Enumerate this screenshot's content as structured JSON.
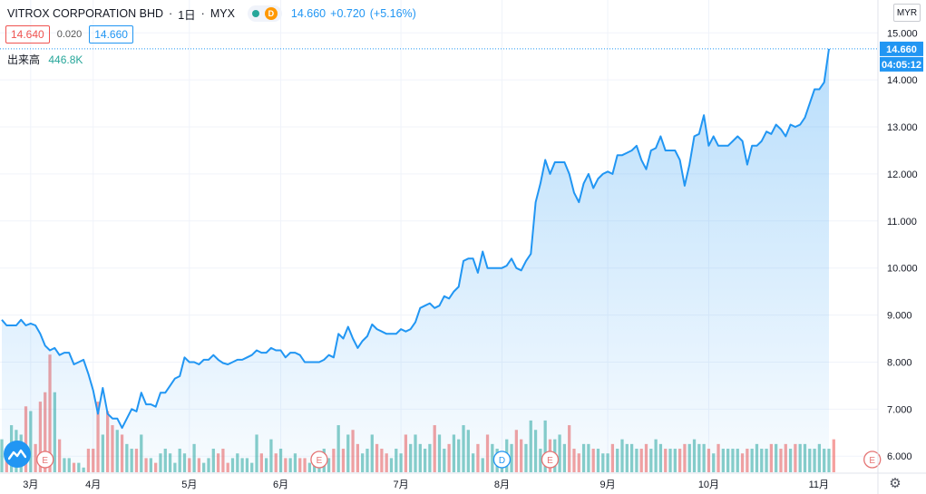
{
  "legend": {
    "symbol": "VITROX CORPORATION BHD",
    "interval": "1日",
    "exchange": "MYX",
    "d_badge": "D",
    "last": "14.660",
    "change": "+0.720",
    "change_pct": "(+5.16%)"
  },
  "bid_ask": {
    "bid": "14.640",
    "spread": "0.020",
    "ask": "14.660"
  },
  "volume": {
    "label": "出来高",
    "value": "446.8K"
  },
  "currency_button": "MYR",
  "axis_tags": {
    "price": "14.660",
    "countdown": "04:05:12"
  },
  "icons": {
    "settings": "gear-icon",
    "logo": "tradingview-logo-icon"
  },
  "colors": {
    "line": "#2196f3",
    "up_volume": "#26a69a",
    "down_volume": "#ef5350",
    "event": "#e57373",
    "dividend": "#2196f3"
  },
  "chart_data": {
    "type": "line",
    "title": "",
    "xlabel": "",
    "ylabel": "",
    "ylim": [
      5.85,
      15.15
    ],
    "y_ticks": [
      "6.000",
      "7.000",
      "8.000",
      "9.000",
      "10.000",
      "11.000",
      "12.000",
      "13.000",
      "14.000",
      "15.000"
    ],
    "x_ticks": [
      "3月",
      "4月",
      "5月",
      "6月",
      "7月",
      "8月",
      "9月",
      "10月",
      "11月"
    ],
    "grid": true,
    "price_series": {
      "name": "",
      "values": [
        8.9,
        8.78,
        8.78,
        8.78,
        8.9,
        8.78,
        8.82,
        8.78,
        8.6,
        8.35,
        8.25,
        8.3,
        8.15,
        8.2,
        8.2,
        7.95,
        8.0,
        8.05,
        7.75,
        7.4,
        6.9,
        7.45,
        6.9,
        6.8,
        6.8,
        6.6,
        6.8,
        7.0,
        6.95,
        7.35,
        7.1,
        7.1,
        7.05,
        7.35,
        7.35,
        7.5,
        7.65,
        7.7,
        8.1,
        8.0,
        8.0,
        7.95,
        8.05,
        8.05,
        8.15,
        8.05,
        7.98,
        7.95,
        8.0,
        8.05,
        8.05,
        8.1,
        8.15,
        8.25,
        8.2,
        8.2,
        8.3,
        8.25,
        8.25,
        8.1,
        8.2,
        8.2,
        8.15,
        8.0,
        8.0,
        8.0,
        8.0,
        8.05,
        8.15,
        8.1,
        8.6,
        8.5,
        8.75,
        8.5,
        8.3,
        8.45,
        8.55,
        8.8,
        8.7,
        8.65,
        8.6,
        8.6,
        8.6,
        8.7,
        8.65,
        8.7,
        8.85,
        9.15,
        9.2,
        9.25,
        9.15,
        9.2,
        9.4,
        9.35,
        9.5,
        9.6,
        10.15,
        10.2,
        10.2,
        9.9,
        10.35,
        10.0,
        10.0,
        10.0,
        10.0,
        10.05,
        10.2,
        10.0,
        9.95,
        10.15,
        10.3,
        11.4,
        11.8,
        12.3,
        12.0,
        12.25,
        12.25,
        12.25,
        12.0,
        11.6,
        11.4,
        11.8,
        12.0,
        11.7,
        11.9,
        12.0,
        12.05,
        12.0,
        12.4,
        12.4,
        12.45,
        12.5,
        12.6,
        12.3,
        12.1,
        12.5,
        12.55,
        12.8,
        12.5,
        12.5,
        12.5,
        12.3,
        11.75,
        12.2,
        12.8,
        12.85,
        13.25,
        12.6,
        12.8,
        12.6,
        12.6,
        12.6,
        12.7,
        12.8,
        12.7,
        12.2,
        12.6,
        12.6,
        12.7,
        12.9,
        12.85,
        13.05,
        12.95,
        12.8,
        13.05,
        13.0,
        13.05,
        13.2,
        13.5,
        13.8,
        13.8,
        13.95,
        14.66
      ]
    },
    "volume_series": {
      "name": "",
      "values": [
        0.7,
        0.5,
        1.0,
        0.9,
        0.8,
        1.4,
        1.3,
        0.6,
        1.5,
        1.7,
        2.5,
        1.7,
        0.7,
        0.3,
        0.3,
        0.2,
        0.2,
        0.1,
        0.5,
        0.5,
        1.5,
        0.8,
        1.3,
        1.0,
        0.9,
        0.8,
        0.6,
        0.5,
        0.5,
        0.8,
        0.3,
        0.3,
        0.2,
        0.4,
        0.5,
        0.4,
        0.2,
        0.5,
        0.4,
        0.3,
        0.6,
        0.3,
        0.2,
        0.3,
        0.5,
        0.4,
        0.5,
        0.2,
        0.3,
        0.4,
        0.3,
        0.3,
        0.2,
        0.8,
        0.4,
        0.3,
        0.7,
        0.4,
        0.5,
        0.3,
        0.3,
        0.4,
        0.3,
        0.3,
        0.2,
        0.2,
        0.4,
        0.5,
        0.3,
        0.5,
        1.0,
        0.5,
        0.8,
        0.9,
        0.6,
        0.4,
        0.5,
        0.8,
        0.6,
        0.5,
        0.4,
        0.3,
        0.5,
        0.4,
        0.8,
        0.6,
        0.8,
        0.6,
        0.5,
        0.6,
        1.0,
        0.8,
        0.5,
        0.6,
        0.8,
        0.7,
        1.0,
        0.9,
        0.4,
        0.6,
        0.3,
        0.8,
        0.6,
        0.5,
        0.4,
        0.7,
        0.6,
        0.9,
        0.7,
        0.6,
        1.1,
        0.9,
        0.5,
        1.1,
        0.7,
        0.7,
        0.8,
        0.6,
        1.0,
        0.5,
        0.4,
        0.6,
        0.6,
        0.5,
        0.5,
        0.4,
        0.4,
        0.6,
        0.5,
        0.7,
        0.6,
        0.6,
        0.5,
        0.5,
        0.6,
        0.5,
        0.7,
        0.6,
        0.5,
        0.5,
        0.5,
        0.5,
        0.6,
        0.6,
        0.7,
        0.6,
        0.6,
        0.5,
        0.4,
        0.6,
        0.5,
        0.5,
        0.5,
        0.5,
        0.4,
        0.5,
        0.5,
        0.6,
        0.5,
        0.5,
        0.6,
        0.6,
        0.5,
        0.6,
        0.5,
        0.6,
        0.6,
        0.6,
        0.5,
        0.5,
        0.6,
        0.5,
        0.5,
        0.7
      ]
    },
    "events": [
      {
        "label": "E",
        "type": "earnings",
        "x_index": 9
      },
      {
        "label": "E",
        "type": "earnings",
        "x_index": 66
      },
      {
        "label": "D",
        "type": "dividend",
        "x_index": 104
      },
      {
        "label": "E",
        "type": "earnings",
        "x_index": 114
      },
      {
        "label": "E",
        "type": "earnings",
        "x_index": 181
      }
    ]
  }
}
